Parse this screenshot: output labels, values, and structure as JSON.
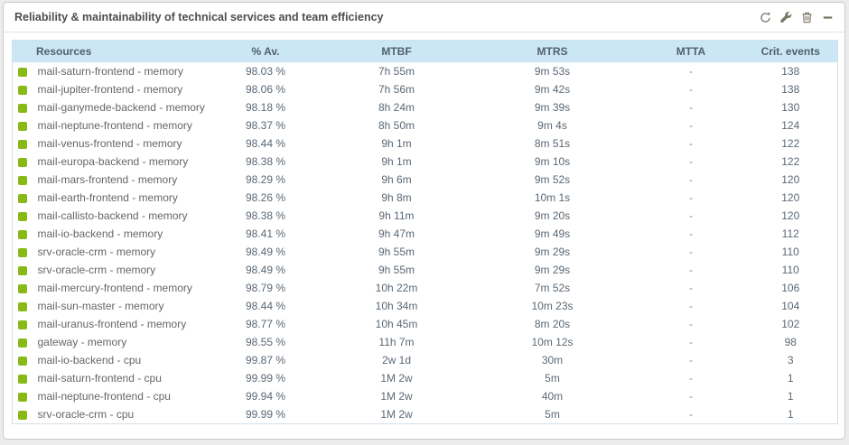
{
  "widget": {
    "title": "Reliability & maintainability of technical services and team efficiency",
    "toolbar": {
      "icons": [
        "refresh-icon",
        "wrench-icon",
        "trash-icon",
        "minimize-icon"
      ]
    }
  },
  "colors": {
    "status_ok": "#88b917",
    "header_bg": "#cbe7f5",
    "table_border": "#d3e1ea",
    "icon_color": "#7b7468"
  },
  "table": {
    "columns": [
      "Resources",
      "% Av.",
      "MTBF",
      "MTRS",
      "MTTA",
      "Crit. events"
    ],
    "rows": [
      {
        "status": "ok",
        "resource": "mail-saturn-frontend - memory",
        "availability": "98.03 %",
        "mtbf": "7h 55m",
        "mtrs": "9m 53s",
        "mtta": "-",
        "crit_events": "138"
      },
      {
        "status": "ok",
        "resource": "mail-jupiter-frontend - memory",
        "availability": "98.06 %",
        "mtbf": "7h 56m",
        "mtrs": "9m 42s",
        "mtta": "-",
        "crit_events": "138"
      },
      {
        "status": "ok",
        "resource": "mail-ganymede-backend - memory",
        "availability": "98.18 %",
        "mtbf": "8h 24m",
        "mtrs": "9m 39s",
        "mtta": "-",
        "crit_events": "130"
      },
      {
        "status": "ok",
        "resource": "mail-neptune-frontend - memory",
        "availability": "98.37 %",
        "mtbf": "8h 50m",
        "mtrs": "9m 4s",
        "mtta": "-",
        "crit_events": "124"
      },
      {
        "status": "ok",
        "resource": "mail-venus-frontend - memory",
        "availability": "98.44 %",
        "mtbf": "9h 1m",
        "mtrs": "8m 51s",
        "mtta": "-",
        "crit_events": "122"
      },
      {
        "status": "ok",
        "resource": "mail-europa-backend - memory",
        "availability": "98.38 %",
        "mtbf": "9h 1m",
        "mtrs": "9m 10s",
        "mtta": "-",
        "crit_events": "122"
      },
      {
        "status": "ok",
        "resource": "mail-mars-frontend - memory",
        "availability": "98.29 %",
        "mtbf": "9h 6m",
        "mtrs": "9m 52s",
        "mtta": "-",
        "crit_events": "120"
      },
      {
        "status": "ok",
        "resource": "mail-earth-frontend - memory",
        "availability": "98.26 %",
        "mtbf": "9h 8m",
        "mtrs": "10m 1s",
        "mtta": "-",
        "crit_events": "120"
      },
      {
        "status": "ok",
        "resource": "mail-callisto-backend - memory",
        "availability": "98.38 %",
        "mtbf": "9h 11m",
        "mtrs": "9m 20s",
        "mtta": "-",
        "crit_events": "120"
      },
      {
        "status": "ok",
        "resource": "mail-io-backend - memory",
        "availability": "98.41 %",
        "mtbf": "9h 47m",
        "mtrs": "9m 49s",
        "mtta": "-",
        "crit_events": "112"
      },
      {
        "status": "ok",
        "resource": "srv-oracle-crm - memory",
        "availability": "98.49 %",
        "mtbf": "9h 55m",
        "mtrs": "9m 29s",
        "mtta": "-",
        "crit_events": "110"
      },
      {
        "status": "ok",
        "resource": "srv-oracle-crm - memory",
        "availability": "98.49 %",
        "mtbf": "9h 55m",
        "mtrs": "9m 29s",
        "mtta": "-",
        "crit_events": "110"
      },
      {
        "status": "ok",
        "resource": "mail-mercury-frontend - memory",
        "availability": "98.79 %",
        "mtbf": "10h 22m",
        "mtrs": "7m 52s",
        "mtta": "-",
        "crit_events": "106"
      },
      {
        "status": "ok",
        "resource": "mail-sun-master - memory",
        "availability": "98.44 %",
        "mtbf": "10h 34m",
        "mtrs": "10m 23s",
        "mtta": "-",
        "crit_events": "104"
      },
      {
        "status": "ok",
        "resource": "mail-uranus-frontend - memory",
        "availability": "98.77 %",
        "mtbf": "10h 45m",
        "mtrs": "8m 20s",
        "mtta": "-",
        "crit_events": "102"
      },
      {
        "status": "ok",
        "resource": "gateway - memory",
        "availability": "98.55 %",
        "mtbf": "11h 7m",
        "mtrs": "10m 12s",
        "mtta": "-",
        "crit_events": "98"
      },
      {
        "status": "ok",
        "resource": "mail-io-backend - cpu",
        "availability": "99.87 %",
        "mtbf": "2w 1d",
        "mtrs": "30m",
        "mtta": "-",
        "crit_events": "3"
      },
      {
        "status": "ok",
        "resource": "mail-saturn-frontend - cpu",
        "availability": "99.99 %",
        "mtbf": "1M 2w",
        "mtrs": "5m",
        "mtta": "-",
        "crit_events": "1"
      },
      {
        "status": "ok",
        "resource": "mail-neptune-frontend - cpu",
        "availability": "99.94 %",
        "mtbf": "1M 2w",
        "mtrs": "40m",
        "mtta": "-",
        "crit_events": "1"
      },
      {
        "status": "ok",
        "resource": "srv-oracle-crm - cpu",
        "availability": "99.99 %",
        "mtbf": "1M 2w",
        "mtrs": "5m",
        "mtta": "-",
        "crit_events": "1"
      }
    ]
  }
}
